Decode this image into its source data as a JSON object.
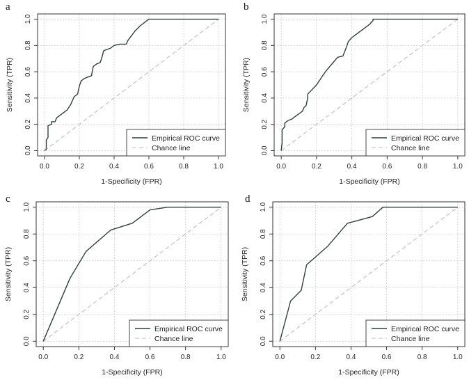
{
  "chart_data": [
    {
      "panel": "a",
      "type": "line",
      "xlabel": "1-Specificity (FPR)",
      "ylabel": "Sensitivity (TPR)",
      "xlim": [
        0,
        1
      ],
      "ylim": [
        0,
        1
      ],
      "xticks": [
        "0.0",
        "0.2",
        "0.4",
        "0.6",
        "0.8",
        "1.0"
      ],
      "yticks": [
        "0.0",
        "0.2",
        "0.4",
        "0.6",
        "0.8",
        "1.0"
      ],
      "grid": true,
      "legend_position": "bottom-right",
      "series": [
        {
          "name": "Empirical ROC curve",
          "color": "#2f3f3f",
          "style": "solid",
          "x": [
            0,
            0.01,
            0.01,
            0.02,
            0.02,
            0.04,
            0.04,
            0.06,
            0.07,
            0.08,
            0.1,
            0.13,
            0.15,
            0.17,
            0.19,
            0.2,
            0.21,
            0.23,
            0.25,
            0.27,
            0.28,
            0.3,
            0.32,
            0.33,
            0.34,
            0.38,
            0.4,
            0.43,
            0.45,
            0.47,
            0.48,
            0.52,
            0.55,
            0.58,
            0.59,
            0.6,
            0.8,
            1.0
          ],
          "y": [
            0,
            0.01,
            0.08,
            0.1,
            0.19,
            0.2,
            0.22,
            0.22,
            0.25,
            0.26,
            0.28,
            0.31,
            0.35,
            0.41,
            0.43,
            0.49,
            0.53,
            0.55,
            0.56,
            0.57,
            0.64,
            0.66,
            0.67,
            0.71,
            0.76,
            0.78,
            0.8,
            0.81,
            0.81,
            0.81,
            0.84,
            0.91,
            0.95,
            0.98,
            0.99,
            1.0,
            1.0,
            1.0
          ]
        },
        {
          "name": "Chance line",
          "color": "#bdbdbd",
          "style": "dashed",
          "x": [
            0,
            1
          ],
          "y": [
            0,
            1
          ]
        }
      ]
    },
    {
      "panel": "b",
      "type": "line",
      "xlabel": "1-Specificity (FPR)",
      "ylabel": "Sensitivity (TPR)",
      "xlim": [
        0,
        1
      ],
      "ylim": [
        0,
        1
      ],
      "xticks": [
        "0.0",
        "0.2",
        "0.4",
        "0.6",
        "0.8",
        "1.0"
      ],
      "yticks": [
        "0.0",
        "0.2",
        "0.4",
        "0.6",
        "0.8",
        "1.0"
      ],
      "grid": true,
      "legend_position": "bottom-right",
      "series": [
        {
          "name": "Empirical ROC curve",
          "color": "#2f3f3f",
          "style": "solid",
          "x": [
            0,
            0.005,
            0.005,
            0.02,
            0.02,
            0.04,
            0.06,
            0.08,
            0.1,
            0.12,
            0.13,
            0.14,
            0.14,
            0.15,
            0.15,
            0.2,
            0.25,
            0.3,
            0.32,
            0.35,
            0.37,
            0.38,
            0.4,
            0.43,
            0.47,
            0.5,
            0.52,
            0.52,
            0.6,
            0.8,
            1.0
          ],
          "y": [
            0,
            0.06,
            0.16,
            0.18,
            0.21,
            0.23,
            0.24,
            0.26,
            0.28,
            0.3,
            0.33,
            0.34,
            0.34,
            0.4,
            0.43,
            0.5,
            0.6,
            0.68,
            0.71,
            0.72,
            0.79,
            0.83,
            0.86,
            0.89,
            0.93,
            0.96,
            0.99,
            1.0,
            1.0,
            1.0,
            1.0
          ]
        },
        {
          "name": "Chance line",
          "color": "#bdbdbd",
          "style": "dashed",
          "x": [
            0,
            1
          ],
          "y": [
            0,
            1
          ]
        }
      ]
    },
    {
      "panel": "c",
      "type": "line",
      "xlabel": "1-Specificity (FPR)",
      "ylabel": "Sensitivity (TPR)",
      "xlim": [
        0,
        1
      ],
      "ylim": [
        0,
        1
      ],
      "xticks": [
        "0.0",
        "0.2",
        "0.4",
        "0.6",
        "0.8",
        "1.0"
      ],
      "yticks": [
        "0.0",
        "0.2",
        "0.4",
        "0.6",
        "0.8",
        "1.0"
      ],
      "grid": true,
      "legend_position": "bottom-right",
      "series": [
        {
          "name": "Empirical ROC curve",
          "color": "#2f3f3f",
          "style": "solid",
          "x": [
            0,
            0.15,
            0.24,
            0.38,
            0.5,
            0.6,
            0.7,
            1.0
          ],
          "y": [
            0,
            0.47,
            0.67,
            0.83,
            0.88,
            0.98,
            1.0,
            1.0
          ]
        },
        {
          "name": "Chance line",
          "color": "#bdbdbd",
          "style": "dashed",
          "x": [
            0,
            1
          ],
          "y": [
            0,
            1
          ]
        }
      ]
    },
    {
      "panel": "d",
      "type": "line",
      "xlabel": "1-Specificity (FPR)",
      "ylabel": "Sensitivity (TPR)",
      "xlim": [
        0,
        1
      ],
      "ylim": [
        0,
        1
      ],
      "xticks": [
        "0.0",
        "0.2",
        "0.4",
        "0.6",
        "0.8",
        "1.0"
      ],
      "yticks": [
        "0.0",
        "0.2",
        "0.4",
        "0.6",
        "0.8",
        "1.0"
      ],
      "grid": true,
      "legend_position": "bottom-right",
      "series": [
        {
          "name": "Empirical ROC curve",
          "color": "#2f3f3f",
          "style": "solid",
          "x": [
            0,
            0.06,
            0.12,
            0.15,
            0.27,
            0.38,
            0.52,
            0.58,
            1.0
          ],
          "y": [
            0,
            0.3,
            0.38,
            0.57,
            0.71,
            0.88,
            0.93,
            1.0,
            1.0
          ]
        },
        {
          "name": "Chance line",
          "color": "#bdbdbd",
          "style": "dashed",
          "x": [
            0,
            1
          ],
          "y": [
            0,
            1
          ]
        }
      ]
    }
  ]
}
